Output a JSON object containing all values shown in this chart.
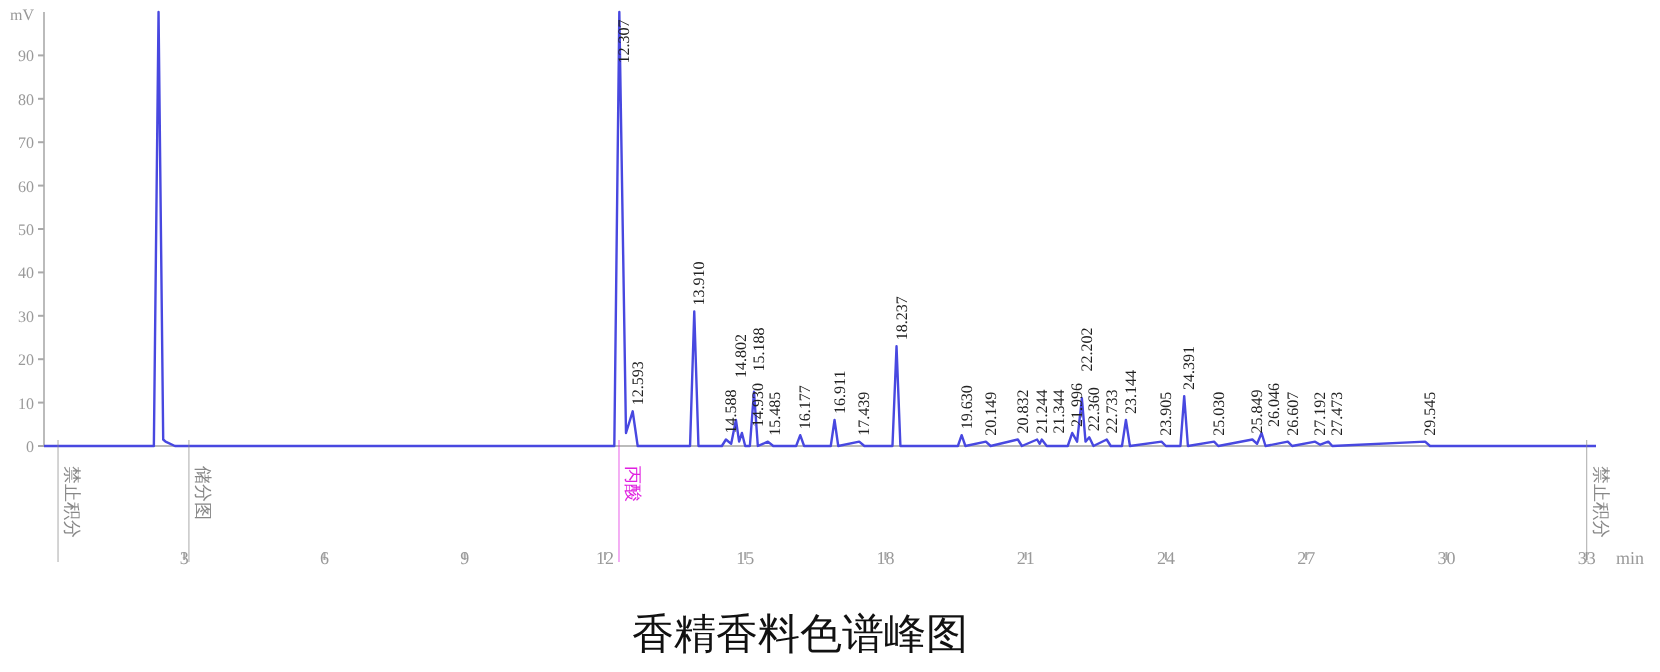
{
  "chart_data": {
    "type": "line",
    "title": "香精香料色谱峰图",
    "xlabel": "min",
    "ylabel": "mV",
    "xlim": [
      0,
      33.2
    ],
    "xticks": [
      3,
      6,
      9,
      12,
      15,
      18,
      21,
      24,
      27,
      30,
      33
    ],
    "ylim": [
      0,
      100
    ],
    "yticks": [
      0,
      10,
      20,
      30,
      40,
      50,
      60,
      70,
      80,
      90
    ],
    "grid": false,
    "marker": "none",
    "line_style": "solid",
    "series": [
      {
        "color": "#4848e0",
        "x": [
          0,
          2.35,
          2.45,
          2.55,
          2.6,
          2.8,
          12.2,
          12.307,
          12.45,
          12.593,
          12.7,
          13.82,
          13.91,
          14.0,
          14.5,
          14.588,
          14.7,
          14.802,
          14.87,
          14.93,
          15.0,
          15.1,
          15.188,
          15.27,
          15.485,
          15.6,
          16.09,
          16.177,
          16.26,
          16.83,
          16.911,
          16.99,
          17.439,
          17.55,
          18.15,
          18.237,
          18.32,
          19.55,
          19.63,
          19.71,
          20.149,
          20.25,
          20.832,
          20.92,
          21.244,
          21.3,
          21.344,
          21.45,
          21.9,
          21.996,
          22.1,
          22.202,
          22.28,
          22.36,
          22.45,
          22.733,
          22.82,
          23.06,
          23.144,
          23.23,
          23.905,
          24.0,
          24.31,
          24.391,
          24.47,
          25.03,
          25.12,
          25.849,
          25.95,
          26.046,
          26.13,
          26.607,
          26.7,
          27.192,
          27.3,
          27.473,
          27.56,
          29.545,
          29.65,
          33.2
        ],
        "values": [
          0,
          0,
          100,
          1.5,
          1,
          0,
          0,
          100,
          3,
          8,
          0,
          0,
          31,
          0,
          0,
          1.5,
          0.5,
          6,
          1,
          3,
          0,
          0,
          12.5,
          0,
          1,
          0,
          0,
          2.5,
          0,
          0,
          6,
          0,
          1,
          0,
          0,
          23,
          0,
          0,
          2.5,
          0,
          1,
          0,
          1.5,
          0,
          1.5,
          0.5,
          1.5,
          0,
          0,
          3,
          1,
          11,
          1,
          2,
          0,
          1.5,
          0,
          0,
          6,
          0,
          1,
          0,
          0,
          11.5,
          0,
          1,
          0,
          1.5,
          0.5,
          3,
          0,
          1,
          0,
          1,
          0.3,
          1,
          0,
          1,
          0,
          0
        ]
      }
    ],
    "annotations": [
      {
        "text": "12.307",
        "x": 12.307,
        "y": 100
      },
      {
        "text": "12.593",
        "x": 12.593,
        "y": 8
      },
      {
        "text": "13.910",
        "x": 13.91,
        "y": 31
      },
      {
        "text": "14.588",
        "x": 14.588,
        "y": 1.5
      },
      {
        "text": "14.802",
        "x": 14.802,
        "y": 6
      },
      {
        "text": "14.930",
        "x": 14.93,
        "y": 3
      },
      {
        "text": "15.188",
        "x": 15.188,
        "y": 12.5
      },
      {
        "text": "15.485",
        "x": 15.485,
        "y": 1
      },
      {
        "text": "16.177",
        "x": 16.177,
        "y": 2.5
      },
      {
        "text": "16.911",
        "x": 16.911,
        "y": 6
      },
      {
        "text": "17.439",
        "x": 17.439,
        "y": 1
      },
      {
        "text": "18.237",
        "x": 18.237,
        "y": 23
      },
      {
        "text": "19.630",
        "x": 19.63,
        "y": 2.5
      },
      {
        "text": "20.149",
        "x": 20.149,
        "y": 1
      },
      {
        "text": "20.832",
        "x": 20.832,
        "y": 1.5
      },
      {
        "text": "21.244",
        "x": 21.244,
        "y": 1.5
      },
      {
        "text": "21.344",
        "x": 21.344,
        "y": 1.5
      },
      {
        "text": "21.996",
        "x": 21.996,
        "y": 3
      },
      {
        "text": "22.202",
        "x": 22.202,
        "y": 11
      },
      {
        "text": "22.360",
        "x": 22.36,
        "y": 2
      },
      {
        "text": "22.733",
        "x": 22.733,
        "y": 1.5
      },
      {
        "text": "23.144",
        "x": 23.144,
        "y": 6
      },
      {
        "text": "23.905",
        "x": 23.905,
        "y": 1
      },
      {
        "text": "24.391",
        "x": 24.391,
        "y": 11.5
      },
      {
        "text": "25.030",
        "x": 25.03,
        "y": 1
      },
      {
        "text": "25.849",
        "x": 25.849,
        "y": 1.5
      },
      {
        "text": "26.046",
        "x": 26.046,
        "y": 3
      },
      {
        "text": "26.607",
        "x": 26.607,
        "y": 1
      },
      {
        "text": "27.192",
        "x": 27.192,
        "y": 1
      },
      {
        "text": "27.473",
        "x": 27.473,
        "y": 1
      },
      {
        "text": "29.545",
        "x": 29.545,
        "y": 1
      }
    ],
    "ref_lines": [
      {
        "axis": "x",
        "value": 0.3,
        "label": "禁止积分",
        "color": "#888888"
      },
      {
        "axis": "x",
        "value": 3.1,
        "label": "储分图",
        "color": "#888888"
      },
      {
        "axis": "x",
        "value": 12.3,
        "label": "丙酸",
        "color": "#e020e0"
      },
      {
        "axis": "x",
        "value": 33,
        "label": "禁止积分",
        "color": "#888888"
      }
    ]
  }
}
